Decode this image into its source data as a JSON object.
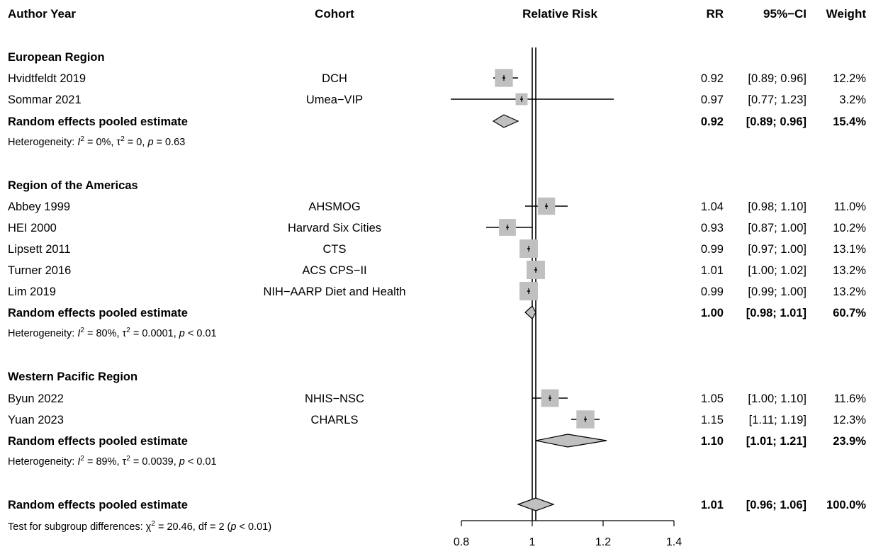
{
  "headers": {
    "author": "Author Year",
    "cohort": "Cohort",
    "plot": "Relative Risk",
    "rr": "RR",
    "ci": "95%−CI",
    "weight": "Weight"
  },
  "chart_data": {
    "type": "forest",
    "xlim": [
      0.8,
      1.4
    ],
    "xticks": [
      0.8,
      1,
      1.2,
      1.4
    ],
    "xtick_labels": [
      "0.8",
      "1",
      "1.2",
      "1.4"
    ],
    "null_line": 1,
    "overall_line": 1.01,
    "colors": {
      "box": "#c0c0c0",
      "diamond": "#c0c0c0",
      "line": "#000000"
    },
    "groups": [
      {
        "name": "European Region",
        "studies": [
          {
            "author": "Hvidtfeldt 2019",
            "cohort": "DCH",
            "rr": 0.92,
            "lower": 0.89,
            "upper": 0.96,
            "rr_text": "0.92",
            "ci_text": "[0.89; 0.96]",
            "weight": 12.2,
            "weight_text": "12.2%"
          },
          {
            "author": "Sommar 2021",
            "cohort": "Umea−VIP",
            "rr": 0.97,
            "lower": 0.77,
            "upper": 1.23,
            "rr_text": "0.97",
            "ci_text": "[0.77; 1.23]",
            "weight": 3.2,
            "weight_text": "3.2%"
          }
        ],
        "pooled": {
          "label": "Random effects pooled estimate",
          "rr": 0.92,
          "lower": 0.89,
          "upper": 0.96,
          "rr_text": "0.92",
          "ci_text": "[0.89; 0.96]",
          "weight_text": "15.4%"
        },
        "heterogeneity": {
          "i2": "0%",
          "tau2": "0",
          "p_op": "=",
          "p": "0.63"
        }
      },
      {
        "name": "Region of the Americas",
        "studies": [
          {
            "author": "Abbey 1999",
            "cohort": "AHSMOG",
            "rr": 1.04,
            "lower": 0.98,
            "upper": 1.1,
            "rr_text": "1.04",
            "ci_text": "[0.98; 1.10]",
            "weight": 11.0,
            "weight_text": "11.0%"
          },
          {
            "author": "HEI 2000",
            "cohort": "Harvard Six Cities",
            "rr": 0.93,
            "lower": 0.87,
            "upper": 1.0,
            "rr_text": "0.93",
            "ci_text": "[0.87; 1.00]",
            "weight": 10.2,
            "weight_text": "10.2%"
          },
          {
            "author": "Lipsett 2011",
            "cohort": "CTS",
            "rr": 0.99,
            "lower": 0.97,
            "upper": 1.0,
            "rr_text": "0.99",
            "ci_text": "[0.97; 1.00]",
            "weight": 13.1,
            "weight_text": "13.1%"
          },
          {
            "author": "Turner 2016",
            "cohort": "ACS CPS−II",
            "rr": 1.01,
            "lower": 1.0,
            "upper": 1.02,
            "rr_text": "1.01",
            "ci_text": "[1.00; 1.02]",
            "weight": 13.2,
            "weight_text": "13.2%"
          },
          {
            "author": "Lim 2019",
            "cohort": "NIH−AARP Diet and Health",
            "rr": 0.99,
            "lower": 0.99,
            "upper": 1.0,
            "rr_text": "0.99",
            "ci_text": "[0.99; 1.00]",
            "weight": 13.2,
            "weight_text": "13.2%"
          }
        ],
        "pooled": {
          "label": "Random effects pooled estimate",
          "rr": 1.0,
          "lower": 0.98,
          "upper": 1.01,
          "rr_text": "1.00",
          "ci_text": "[0.98; 1.01]",
          "weight_text": "60.7%"
        },
        "heterogeneity": {
          "i2": "80%",
          "tau2": "0.0001",
          "p_op": "<",
          "p": "0.01"
        }
      },
      {
        "name": "Western Pacific Region",
        "studies": [
          {
            "author": "Byun 2022",
            "cohort": "NHIS−NSC",
            "rr": 1.05,
            "lower": 1.0,
            "upper": 1.1,
            "rr_text": "1.05",
            "ci_text": "[1.00; 1.10]",
            "weight": 11.6,
            "weight_text": "11.6%"
          },
          {
            "author": "Yuan 2023",
            "cohort": "CHARLS",
            "rr": 1.15,
            "lower": 1.11,
            "upper": 1.19,
            "rr_text": "1.15",
            "ci_text": "[1.11; 1.19]",
            "weight": 12.3,
            "weight_text": "12.3%"
          }
        ],
        "pooled": {
          "label": "Random effects pooled estimate",
          "rr": 1.1,
          "lower": 1.01,
          "upper": 1.21,
          "rr_text": "1.10",
          "ci_text": "[1.01; 1.21]",
          "weight_text": "23.9%"
        },
        "heterogeneity": {
          "i2": "89%",
          "tau2": "0.0039",
          "p_op": "<",
          "p": "0.01"
        }
      }
    ],
    "overall": {
      "label": "Random effects pooled estimate",
      "rr": 1.01,
      "lower": 0.96,
      "upper": 1.06,
      "rr_text": "1.01",
      "ci_text": "[0.96; 1.06]",
      "weight_text": "100.0%"
    },
    "subgroup_test": {
      "chi2": "20.46",
      "df": "2",
      "p_op": "<",
      "p": "0.01"
    }
  }
}
